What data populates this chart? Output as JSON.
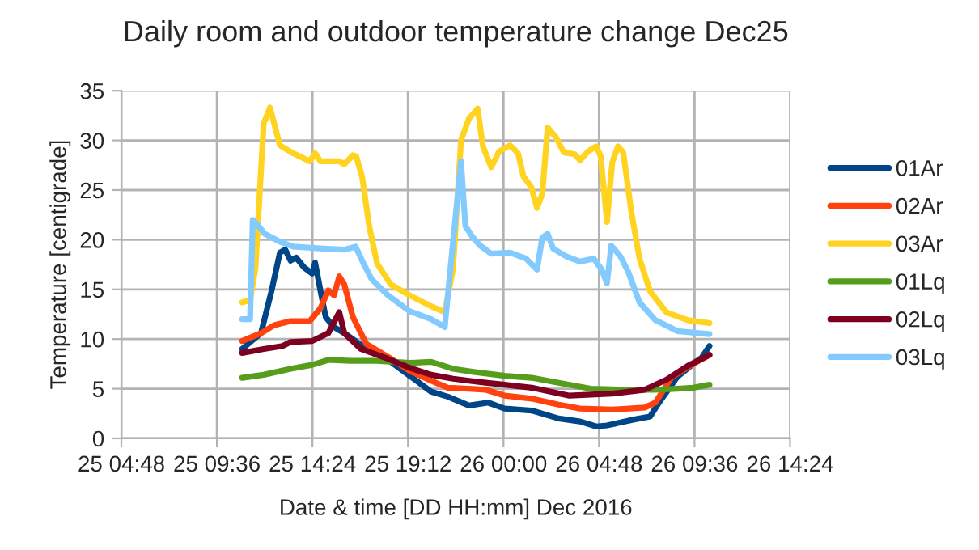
{
  "chart_data": {
    "type": "line",
    "title": "Daily room and outdoor temperature change Dec25",
    "xlabel": "Date & time [DD HH:mm] Dec 2016",
    "ylabel": "Temperature [centigrade]",
    "xlim": [
      "2016-12-25T04:48",
      "2016-12-26T14:24"
    ],
    "xticks": [
      {
        "value": "2016-12-25T04:48",
        "label": "25 04:48"
      },
      {
        "value": "2016-12-25T09:36",
        "label": "25 09:36"
      },
      {
        "value": "2016-12-25T14:24",
        "label": "25 14:24"
      },
      {
        "value": "2016-12-25T19:12",
        "label": "25 19:12"
      },
      {
        "value": "2016-12-26T00:00",
        "label": "26 00:00"
      },
      {
        "value": "2016-12-26T04:48",
        "label": "26 04:48"
      },
      {
        "value": "2016-12-26T09:36",
        "label": "26 09:36"
      },
      {
        "value": "2016-12-26T14:24",
        "label": "26 14:24"
      }
    ],
    "ylim": [
      0,
      35
    ],
    "yticks": [
      0,
      5,
      10,
      15,
      20,
      25,
      30,
      35
    ],
    "grid": true,
    "legend": "right",
    "marker": "none",
    "line_style": "solid",
    "series": [
      {
        "name": "01Ar",
        "color": "#004586",
        "x": [
          "2016-12-25T10:52",
          "2016-12-25T11:49",
          "2016-12-25T12:21",
          "2016-12-25T12:46",
          "2016-12-25T13:02",
          "2016-12-25T13:18",
          "2016-12-25T13:35",
          "2016-12-25T13:59",
          "2016-12-25T14:23",
          "2016-12-25T14:32",
          "2016-12-25T14:48",
          "2016-12-25T15:04",
          "2016-12-25T15:29",
          "2016-12-25T16:00",
          "2016-12-25T17:07",
          "2016-12-25T18:12",
          "2016-12-25T19:17",
          "2016-12-25T20:22",
          "2016-12-25T21:12",
          "2016-12-25T22:16",
          "2016-12-25T23:14",
          "2016-12-26T00:03",
          "2016-12-26T01:25",
          "2016-12-26T02:46",
          "2016-12-26T03:51",
          "2016-12-26T04:40",
          "2016-12-26T05:12",
          "2016-12-26T06:34",
          "2016-12-26T07:22",
          "2016-12-26T07:47",
          "2016-12-26T08:44",
          "2016-12-26T09:32",
          "2016-12-26T09:57",
          "2016-12-26T10:21"
        ],
        "values": [
          9.0,
          10.6,
          14.9,
          18.7,
          19.0,
          17.9,
          18.2,
          17.2,
          16.6,
          17.7,
          14.9,
          12.2,
          11.2,
          10.6,
          9.0,
          7.9,
          6.3,
          4.7,
          4.2,
          3.3,
          3.6,
          3.0,
          2.8,
          2.0,
          1.7,
          1.2,
          1.3,
          1.9,
          2.2,
          3.5,
          6.2,
          7.5,
          8.1,
          9.3
        ]
      },
      {
        "name": "02Ar",
        "color": "#ff420e",
        "x": [
          "2016-12-25T10:52",
          "2016-12-25T11:49",
          "2016-12-25T12:29",
          "2016-12-25T13:18",
          "2016-12-25T14:16",
          "2016-12-25T14:48",
          "2016-12-25T15:12",
          "2016-12-25T15:29",
          "2016-12-25T15:45",
          "2016-12-25T16:00",
          "2016-12-25T16:26",
          "2016-12-25T17:07",
          "2016-12-25T18:12",
          "2016-12-25T19:17",
          "2016-12-25T20:22",
          "2016-12-25T21:12",
          "2016-12-25T22:16",
          "2016-12-25T23:06",
          "2016-12-26T00:03",
          "2016-12-26T01:25",
          "2016-12-26T02:46",
          "2016-12-26T03:51",
          "2016-12-26T05:28",
          "2016-12-26T07:06",
          "2016-12-26T07:38",
          "2016-12-26T08:28",
          "2016-12-26T09:32",
          "2016-12-26T10:21"
        ],
        "values": [
          9.8,
          10.6,
          11.4,
          11.8,
          11.8,
          13.1,
          14.9,
          14.4,
          16.3,
          15.5,
          12.2,
          9.5,
          8.2,
          6.8,
          5.8,
          5.1,
          5.0,
          4.9,
          4.3,
          4.0,
          3.4,
          3.0,
          2.9,
          3.1,
          3.6,
          6.2,
          7.5,
          8.4
        ]
      },
      {
        "name": "03Ar",
        "color": "#ffd320",
        "x": [
          "2016-12-25T10:52",
          "2016-12-25T11:16",
          "2016-12-25T11:32",
          "2016-12-25T11:57",
          "2016-12-25T12:16",
          "2016-12-25T12:46",
          "2016-12-25T13:26",
          "2016-12-25T14:16",
          "2016-12-25T14:32",
          "2016-12-25T14:48",
          "2016-12-25T15:45",
          "2016-12-25T16:00",
          "2016-12-25T16:26",
          "2016-12-25T16:36",
          "2016-12-25T16:54",
          "2016-12-25T17:15",
          "2016-12-25T17:39",
          "2016-12-25T18:20",
          "2016-12-25T19:17",
          "2016-12-25T20:22",
          "2016-12-25T21:03",
          "2016-12-25T21:28",
          "2016-12-25T21:52",
          "2016-12-25T22:16",
          "2016-12-25T22:42",
          "2016-12-25T22:58",
          "2016-12-25T23:23",
          "2016-12-25T23:47",
          "2016-12-26T00:20",
          "2016-12-26T00:44",
          "2016-12-26T01:00",
          "2016-12-26T01:24",
          "2016-12-26T01:41",
          "2016-12-26T01:57",
          "2016-12-26T02:13",
          "2016-12-26T02:38",
          "2016-12-26T03:02",
          "2016-12-26T03:35",
          "2016-12-26T03:51",
          "2016-12-26T04:15",
          "2016-12-26T04:40",
          "2016-12-26T04:53",
          "2016-12-26T05:12",
          "2016-12-26T05:28",
          "2016-12-26T05:45",
          "2016-12-26T06:01",
          "2016-12-26T06:25",
          "2016-12-26T06:50",
          "2016-12-26T07:22",
          "2016-12-26T08:11",
          "2016-12-26T09:16",
          "2016-12-26T10:21"
        ],
        "values": [
          13.7,
          13.9,
          17.1,
          31.7,
          33.3,
          29.5,
          28.7,
          27.9,
          28.7,
          27.9,
          27.9,
          27.6,
          28.5,
          28.4,
          26.3,
          21.4,
          17.6,
          15.5,
          14.4,
          13.3,
          12.7,
          17.1,
          30.0,
          32.2,
          33.2,
          29.4,
          27.3,
          28.9,
          29.5,
          28.7,
          26.4,
          25.3,
          23.2,
          24.6,
          31.3,
          30.3,
          28.8,
          28.6,
          28.0,
          28.9,
          29.4,
          28.4,
          21.8,
          27.8,
          29.4,
          28.8,
          22.9,
          18.1,
          14.8,
          12.7,
          11.9,
          11.6
        ]
      },
      {
        "name": "01Lq",
        "color": "#579d1c",
        "x": [
          "2016-12-25T10:52",
          "2016-12-25T11:57",
          "2016-12-25T13:18",
          "2016-12-25T14:23",
          "2016-12-25T15:12",
          "2016-12-25T16:18",
          "2016-12-25T17:39",
          "2016-12-25T19:17",
          "2016-12-25T20:22",
          "2016-12-25T21:28",
          "2016-12-25T22:26",
          "2016-12-26T00:03",
          "2016-12-26T01:25",
          "2016-12-26T02:46",
          "2016-12-26T04:23",
          "2016-12-26T06:01",
          "2016-12-26T07:38",
          "2016-12-26T08:44",
          "2016-12-26T09:32",
          "2016-12-26T10:21"
        ],
        "values": [
          6.1,
          6.4,
          7.0,
          7.4,
          7.9,
          7.8,
          7.8,
          7.6,
          7.7,
          7.0,
          6.7,
          6.3,
          6.1,
          5.6,
          5.0,
          4.9,
          4.9,
          5.0,
          5.1,
          5.4
        ]
      },
      {
        "name": "02Lq",
        "color": "#7e0021",
        "x": [
          "2016-12-25T10:52",
          "2016-12-25T11:57",
          "2016-12-25T12:54",
          "2016-12-25T13:18",
          "2016-12-25T14:23",
          "2016-12-25T15:12",
          "2016-12-25T15:45",
          "2016-12-25T16:00",
          "2016-12-25T16:50",
          "2016-12-25T18:12",
          "2016-12-25T19:17",
          "2016-12-25T20:22",
          "2016-12-25T21:28",
          "2016-12-25T22:16",
          "2016-12-25T23:06",
          "2016-12-26T00:03",
          "2016-12-26T01:25",
          "2016-12-26T03:19",
          "2016-12-26T05:28",
          "2016-12-26T07:06",
          "2016-12-26T08:11",
          "2016-12-26T09:16",
          "2016-12-26T10:21"
        ],
        "values": [
          8.6,
          9.0,
          9.3,
          9.7,
          9.8,
          10.6,
          12.7,
          10.6,
          9.0,
          8.0,
          7.1,
          6.4,
          6.0,
          5.8,
          5.6,
          5.4,
          5.1,
          4.3,
          4.5,
          4.9,
          5.9,
          7.3,
          8.4
        ]
      },
      {
        "name": "03Lq",
        "color": "#83caff",
        "x": [
          "2016-12-25T10:52",
          "2016-12-25T11:16",
          "2016-12-25T11:24",
          "2016-12-25T11:41",
          "2016-12-25T12:00",
          "2016-12-25T12:46",
          "2016-12-25T13:26",
          "2016-12-25T14:56",
          "2016-12-25T16:00",
          "2016-12-25T16:34",
          "2016-12-25T16:58",
          "2016-12-25T17:23",
          "2016-12-25T18:12",
          "2016-12-25T19:17",
          "2016-12-25T20:22",
          "2016-12-25T21:03",
          "2016-12-25T21:20",
          "2016-12-25T21:52",
          "2016-12-25T22:05",
          "2016-12-25T22:26",
          "2016-12-25T22:50",
          "2016-12-25T23:23",
          "2016-12-26T00:20",
          "2016-12-26T01:08",
          "2016-12-26T01:41",
          "2016-12-26T01:57",
          "2016-12-26T02:13",
          "2016-12-26T02:30",
          "2016-12-26T03:10",
          "2016-12-26T03:51",
          "2016-12-26T04:32",
          "2016-12-26T04:56",
          "2016-12-26T05:12",
          "2016-12-26T05:25",
          "2016-12-26T05:53",
          "2016-12-26T06:17",
          "2016-12-26T06:50",
          "2016-12-26T07:38",
          "2016-12-26T08:44",
          "2016-12-26T10:21"
        ],
        "values": [
          12.0,
          12.0,
          22.0,
          21.4,
          20.6,
          19.8,
          19.3,
          19.1,
          19.0,
          19.3,
          17.6,
          16.0,
          14.4,
          12.8,
          12.0,
          11.2,
          17.1,
          27.9,
          21.4,
          20.3,
          19.4,
          18.6,
          18.7,
          18.1,
          17.0,
          20.2,
          20.6,
          19.1,
          18.3,
          17.8,
          18.1,
          17.0,
          15.6,
          19.4,
          18.3,
          16.7,
          13.7,
          11.9,
          10.8,
          10.5
        ]
      }
    ]
  }
}
